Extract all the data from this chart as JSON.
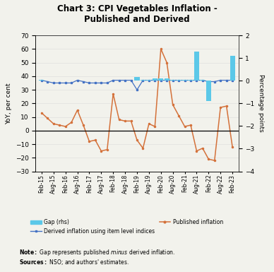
{
  "title": "Chart 3: CPI Vegetables Inflation -\nPublished and Derived",
  "ylabel_left": "YoY, per cent",
  "ylabel_right": "Percentage points",
  "ylim_left": [
    -30,
    70
  ],
  "ylim_right": [
    -4.0,
    2.0
  ],
  "yticks_left": [
    -30,
    -20,
    -10,
    0,
    10,
    20,
    30,
    40,
    50,
    60,
    70
  ],
  "yticks_right": [
    -4.0,
    -3.0,
    -2.0,
    -1.0,
    0.0,
    1.0,
    2.0
  ],
  "x_labels": [
    "Feb-15",
    "Aug-15",
    "Feb-16",
    "Aug-16",
    "Feb-17",
    "Aug-17",
    "Feb-18",
    "Aug-18",
    "Feb-19",
    "Aug-19",
    "Feb-20",
    "Aug-20",
    "Feb-21",
    "Aug-21",
    "Feb-22",
    "Aug-22",
    "Feb-23"
  ],
  "x_tick_positions": [
    0,
    6,
    12,
    18,
    24,
    30,
    36,
    42,
    48,
    54,
    60,
    66,
    72,
    78,
    84,
    90,
    96
  ],
  "published_inflation": [
    13,
    9,
    5,
    4,
    3,
    6,
    15,
    4,
    -8,
    -7,
    -15,
    -14,
    27,
    8,
    7,
    7,
    -7,
    -13,
    5,
    3,
    60,
    50,
    19,
    11,
    3,
    4,
    -15,
    -13,
    -21,
    -22,
    17,
    18,
    -12
  ],
  "derived_inflation": [
    37,
    36,
    35,
    35,
    35,
    35,
    37,
    36,
    35,
    35,
    35,
    35,
    37,
    37,
    37,
    37,
    30,
    37,
    37,
    37,
    37,
    37,
    37,
    37,
    37,
    37,
    37,
    37,
    36,
    36,
    37,
    37,
    37
  ],
  "gap_rhs": [
    0.05,
    0.0,
    0.0,
    0.0,
    0.0,
    0.0,
    0.0,
    0.0,
    0.0,
    0.0,
    0.0,
    0.0,
    0.0,
    0.0,
    0.0,
    0.0,
    0.15,
    0.05,
    0.05,
    0.1,
    0.1,
    0.1,
    0.05,
    0.05,
    0.05,
    0.05,
    1.3,
    0.05,
    -0.9,
    0.0,
    0.0,
    0.0,
    1.1
  ],
  "note_bold": "Note:",
  "note_text": " Gap represents published ",
  "note_italic": "minus",
  "note_end": " derived inflation.",
  "sources_bold": "Sources:",
  "sources_text": " NSO; and authors' estimates.",
  "bar_color": "#5bc8e8",
  "derived_color": "#4472c4",
  "published_color": "#d4713a",
  "background_color": "#f2f2ec"
}
